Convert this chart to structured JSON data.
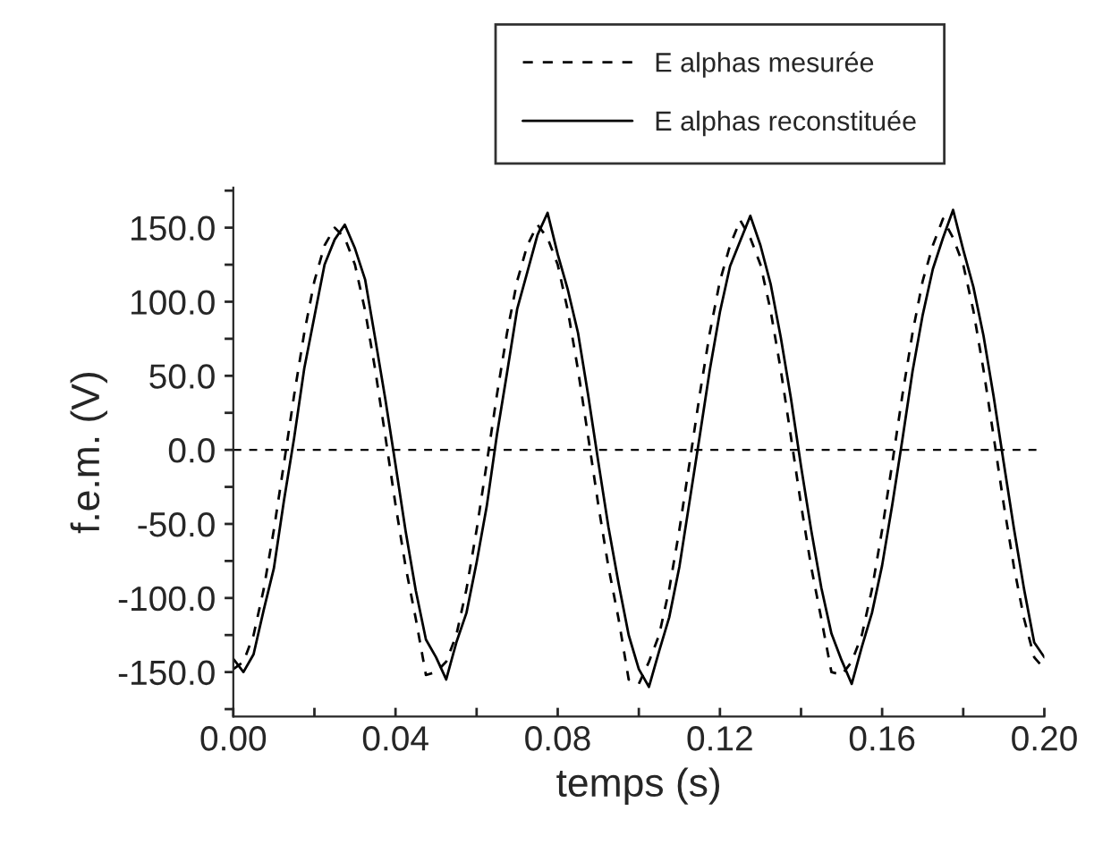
{
  "chart_data": {
    "type": "line",
    "xlabel": "temps (s)",
    "ylabel": "f.e.m. (V)",
    "x": [
      0,
      0.0025,
      0.005,
      0.0075,
      0.01,
      0.0125,
      0.015,
      0.0175,
      0.02,
      0.0225,
      0.025,
      0.0275,
      0.03,
      0.0325,
      0.035,
      0.0375,
      0.04,
      0.0425,
      0.045,
      0.0475,
      0.05,
      0.0525,
      0.055,
      0.0575,
      0.06,
      0.0625,
      0.065,
      0.0675,
      0.07,
      0.0725,
      0.075,
      0.0775,
      0.08,
      0.0825,
      0.085,
      0.0875,
      0.09,
      0.0925,
      0.095,
      0.0975,
      0.1,
      0.1025,
      0.105,
      0.1075,
      0.11,
      0.1125,
      0.115,
      0.1175,
      0.12,
      0.1225,
      0.125,
      0.1275,
      0.13,
      0.1325,
      0.135,
      0.1375,
      0.14,
      0.1425,
      0.145,
      0.1475,
      0.15,
      0.1525,
      0.155,
      0.1575,
      0.16,
      0.1625,
      0.165,
      0.1675,
      0.17,
      0.1725,
      0.175,
      0.1775,
      0.18,
      0.1825,
      0.185,
      0.1875,
      0.19,
      0.1925,
      0.195,
      0.1975,
      0.2
    ],
    "series": [
      {
        "name": "E alphas mesurée",
        "color": "#000000",
        "line_style": "dashed",
        "values": [
          -148,
          -143,
          -125,
          -94,
          -54,
          -9,
          37,
          79,
          114,
          138,
          150,
          143,
          125,
          94,
          54,
          9,
          -37,
          -79,
          -114,
          -152,
          -150,
          -143,
          -125,
          -94,
          -54,
          -9,
          37,
          79,
          114,
          138,
          152,
          143,
          125,
          94,
          54,
          9,
          -37,
          -79,
          -114,
          -155,
          -158,
          -143,
          -125,
          -94,
          -54,
          -9,
          37,
          79,
          114,
          138,
          155,
          143,
          125,
          94,
          54,
          9,
          -37,
          -79,
          -114,
          -150,
          -152,
          -143,
          -125,
          -94,
          -54,
          -9,
          37,
          79,
          114,
          138,
          156,
          143,
          125,
          94,
          54,
          9,
          -37,
          -79,
          -114,
          -140,
          -148
        ]
      },
      {
        "name": "E alphas reconstituée",
        "color": "#000000",
        "line_style": "solid",
        "values": [
          -141,
          -150,
          -138,
          -108,
          -80,
          -34,
          8,
          55,
          90,
          125,
          142,
          152,
          136,
          115,
          75,
          34,
          -10,
          -55,
          -95,
          -128,
          -140,
          -155,
          -130,
          -110,
          -76,
          -38,
          10,
          52,
          95,
          120,
          145,
          160,
          132,
          108,
          79,
          37,
          -8,
          -52,
          -90,
          -125,
          -148,
          -160,
          -136,
          -113,
          -79,
          -35,
          9,
          54,
          93,
          124,
          141,
          158,
          138,
          112,
          76,
          35,
          -11,
          -54,
          -93,
          -124,
          -142,
          -158,
          -133,
          -110,
          -78,
          -37,
          7,
          53,
          91,
          122,
          143,
          162,
          135,
          110,
          77,
          36,
          -9,
          -53,
          -94,
          -130,
          -140
        ]
      }
    ],
    "xlim": [
      0,
      0.2
    ],
    "ylim": [
      -180,
      177
    ],
    "xticks": [
      {
        "value": 0,
        "label": "0.00"
      },
      {
        "value": 0.02,
        "label": null
      },
      {
        "value": 0.04,
        "label": "0.04"
      },
      {
        "value": 0.06,
        "label": null
      },
      {
        "value": 0.08,
        "label": "0.08"
      },
      {
        "value": 0.1,
        "label": null
      },
      {
        "value": 0.12,
        "label": "0.12"
      },
      {
        "value": 0.14,
        "label": null
      },
      {
        "value": 0.16,
        "label": "0.16"
      },
      {
        "value": 0.18,
        "label": null
      },
      {
        "value": 0.2,
        "label": "0.20"
      }
    ],
    "yticks": [
      {
        "value": -175,
        "label": null
      },
      {
        "value": -150,
        "label": "-150.0"
      },
      {
        "value": -125,
        "label": null
      },
      {
        "value": -100,
        "label": "-100.0"
      },
      {
        "value": -75,
        "label": null
      },
      {
        "value": -50,
        "label": "-50.0"
      },
      {
        "value": -25,
        "label": null
      },
      {
        "value": 0,
        "label": "0.0"
      },
      {
        "value": 25,
        "label": null
      },
      {
        "value": 50,
        "label": "50.0"
      },
      {
        "value": 75,
        "label": null
      },
      {
        "value": 100,
        "label": "100.0"
      },
      {
        "value": 125,
        "label": null
      },
      {
        "value": 150,
        "label": "150.0"
      },
      {
        "value": 175,
        "label": null
      }
    ],
    "ref_lines": [
      {
        "axis": "y",
        "value": 0,
        "color": "#000000",
        "line_style": "dashed"
      }
    ],
    "grid": false,
    "legend": "top"
  }
}
